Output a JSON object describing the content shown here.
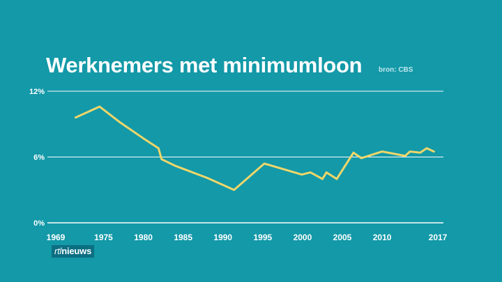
{
  "source": "bron: CBS",
  "logo": {
    "part1": "rtl",
    "part2": "nieuws"
  },
  "colors": {
    "background": "#1399a8",
    "line": "#efd66a",
    "grid": "#ffffff"
  },
  "chart_data": {
    "type": "line",
    "title": "Werknemers met minimumloon",
    "xlabel": "",
    "ylabel": "",
    "x_ticks": [
      1969,
      1975,
      1980,
      1985,
      1990,
      1995,
      2000,
      2005,
      2010,
      2017
    ],
    "y_ticks": [
      {
        "value": 0,
        "label": "0%"
      },
      {
        "value": 6,
        "label": "6%"
      },
      {
        "value": 12,
        "label": "12%"
      }
    ],
    "xlim": [
      1969,
      2017
    ],
    "ylim": [
      0,
      12
    ],
    "grid": "horizontal",
    "series": [
      {
        "x": [
          1971.5,
          1974.5,
          1977,
          1980,
          1981.9,
          1982.3,
          1984,
          1988,
          1991.4,
          1995.2,
          1999.9,
          2001,
          2002.5,
          2003,
          2004.3,
          2006.4,
          2007.4,
          2010,
          2012.9,
          2013.5,
          2014.8,
          2015.6,
          2016.5
        ],
        "y": [
          9.6,
          10.6,
          9.2,
          7.7,
          6.8,
          5.8,
          5.2,
          4.1,
          3.0,
          5.4,
          4.4,
          4.6,
          4.0,
          4.6,
          4.0,
          6.4,
          5.9,
          6.5,
          6.1,
          6.5,
          6.4,
          6.8,
          6.5
        ]
      }
    ]
  }
}
